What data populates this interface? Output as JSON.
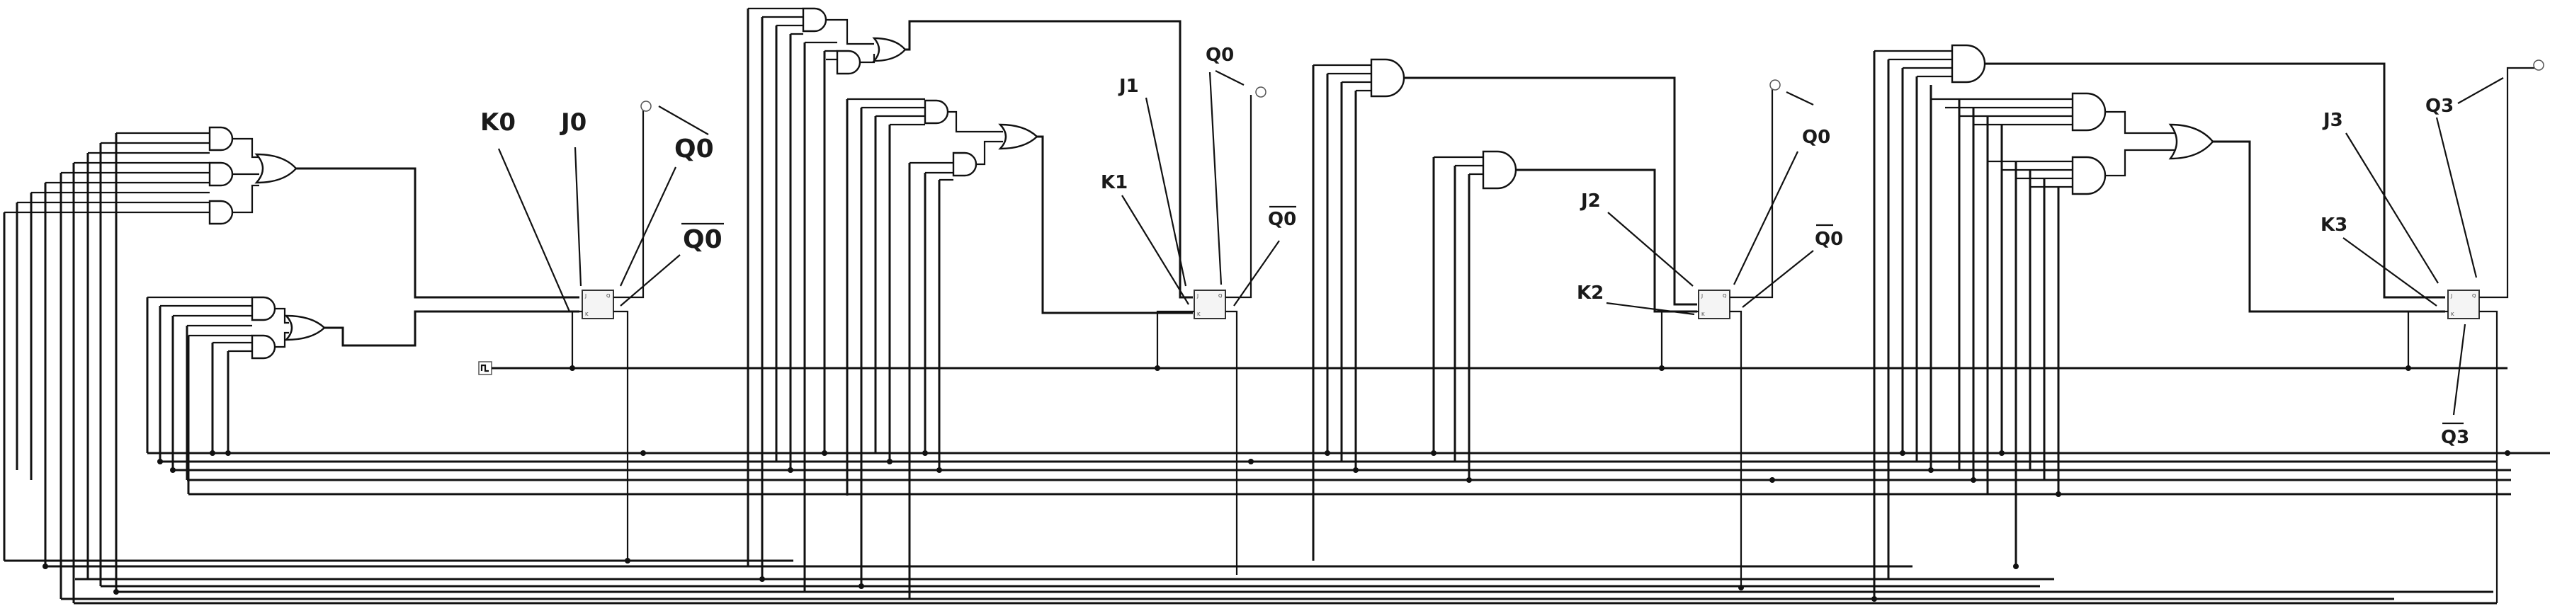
{
  "labels": {
    "k0": "K0",
    "j0": "J0",
    "q0_a": "Q0",
    "q0bar_a": "Q0",
    "j1": "J1",
    "k1": "K1",
    "q0_b": "Q0",
    "q0bar_b": "Q0",
    "j2": "J2",
    "k2": "K2",
    "q0_c": "Q0",
    "q0bar_c": "Q0",
    "j3": "J3",
    "k3": "K3",
    "q3": "Q3",
    "q3bar": "Q3"
  },
  "colors": {
    "wire": "#111111",
    "flipflop_fill": "#f4f4f4",
    "background": "#ffffff"
  }
}
